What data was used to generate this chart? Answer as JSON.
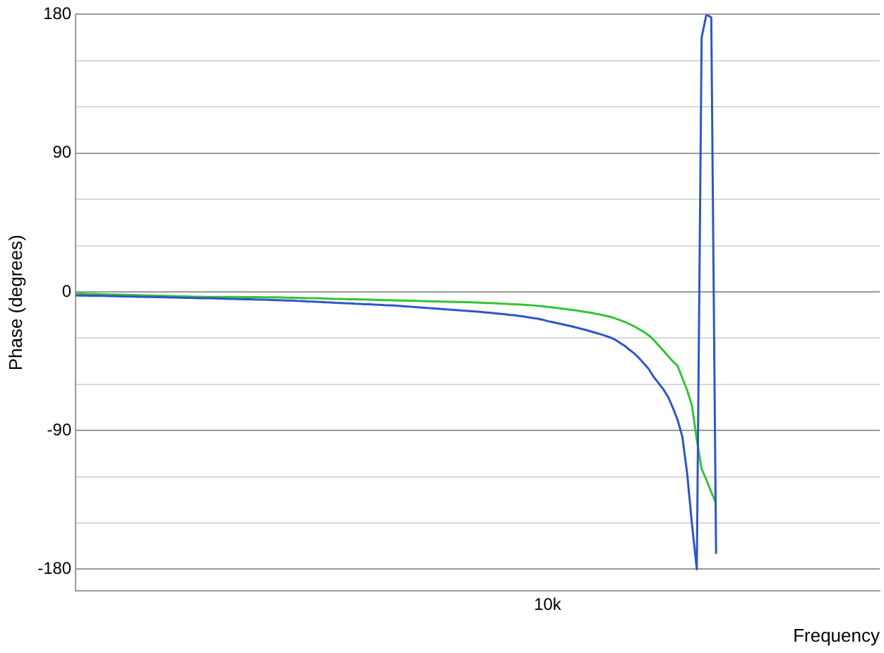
{
  "chart_data": {
    "type": "line",
    "ylabel": "Phase (degrees)",
    "xlabel": "Frequency",
    "grid": "y",
    "legend": false,
    "marker": "none",
    "line_style": "solid",
    "categories": [
      null,
      null,
      null,
      null,
      null,
      null,
      null,
      null,
      null,
      null,
      null,
      null,
      null,
      null,
      null,
      null,
      null,
      null,
      null,
      null,
      null,
      null,
      null,
      null,
      null,
      null,
      null,
      null,
      null,
      null,
      null,
      null,
      null,
      null,
      null,
      null,
      null,
      null,
      null,
      null,
      null,
      null,
      null,
      null,
      null,
      null,
      null,
      null,
      null,
      null,
      null,
      null,
      null,
      null,
      null,
      null,
      null,
      null,
      null,
      null,
      null,
      null,
      null,
      null,
      null,
      null,
      null,
      null,
      null,
      null,
      null,
      null,
      null,
      null,
      null,
      null,
      null,
      null,
      null,
      null,
      null,
      null,
      null,
      null,
      null,
      null,
      null,
      null,
      null,
      null,
      null,
      null,
      null,
      null,
      null,
      null,
      null,
      null,
      "10k",
      null,
      null,
      null,
      null,
      null,
      null,
      null,
      null,
      null,
      null,
      null,
      null,
      null,
      null,
      null,
      null,
      null,
      null,
      null,
      null,
      null,
      null,
      null,
      null,
      null,
      null,
      null,
      null,
      null,
      null,
      null,
      null,
      null,
      null,
      null,
      null,
      null,
      null,
      null,
      null,
      null,
      null,
      null,
      null,
      null,
      null,
      null,
      null,
      null,
      null,
      null,
      null,
      null,
      null,
      null,
      null,
      null,
      null,
      null,
      null,
      null,
      null,
      null,
      null,
      null,
      null,
      null,
      null,
      null
    ],
    "ylim": [
      -194,
      180
    ],
    "yticks": [
      {
        "value": -180,
        "label": "-180"
      },
      {
        "value": -150,
        "label": null
      },
      {
        "value": -120,
        "label": null
      },
      {
        "value": -90,
        "label": "-90"
      },
      {
        "value": -60,
        "label": null
      },
      {
        "value": -30,
        "label": null
      },
      {
        "value": 0,
        "label": "0"
      },
      {
        "value": 30,
        "label": null
      },
      {
        "value": 60,
        "label": null
      },
      {
        "value": 90,
        "label": "90"
      },
      {
        "value": 120,
        "label": null
      },
      {
        "value": 150,
        "label": null
      },
      {
        "value": 180,
        "label": "180"
      }
    ],
    "series": [
      {
        "color": "#2f55c8",
        "values": [
          -2.3,
          -2.4,
          -2.4,
          -2.5,
          -2.6,
          -2.6,
          -2.7,
          -2.8,
          -2.8,
          -2.9,
          -3.0,
          -3.0,
          -3.1,
          -3.2,
          -3.2,
          -3.3,
          -3.4,
          -3.5,
          -3.5,
          -3.6,
          -3.7,
          -3.7,
          -3.8,
          -3.9,
          -3.9,
          -4.0,
          -4.1,
          -4.2,
          -4.2,
          -4.3,
          -4.4,
          -4.5,
          -4.6,
          -4.6,
          -4.7,
          -4.8,
          -4.9,
          -5.0,
          -5.1,
          -5.1,
          -5.2,
          -5.3,
          -5.4,
          -5.5,
          -5.6,
          -5.7,
          -5.9,
          -6.0,
          -6.2,
          -6.3,
          -6.5,
          -6.6,
          -6.8,
          -6.9,
          -7.1,
          -7.2,
          -7.4,
          -7.5,
          -7.7,
          -7.8,
          -8.0,
          -8.1,
          -8.3,
          -8.4,
          -8.6,
          -8.7,
          -8.9,
          -9.1,
          -9.3,
          -9.5,
          -9.8,
          -10.0,
          -10.2,
          -10.5,
          -10.7,
          -10.9,
          -11.1,
          -11.4,
          -11.6,
          -11.8,
          -12.1,
          -12.3,
          -12.5,
          -12.8,
          -13.0,
          -13.3,
          -13.6,
          -13.9,
          -14.2,
          -14.5,
          -14.9,
          -15.2,
          -15.6,
          -16.0,
          -16.5,
          -17.0,
          -17.5,
          -18.1,
          -19.0,
          -19.6,
          -20.3,
          -21.0,
          -21.7,
          -22.4,
          -23.2,
          -24.0,
          -24.8,
          -25.7,
          -26.6,
          -27.5,
          -28.5,
          -29.6,
          -31,
          -33,
          -35,
          -37.5,
          -40,
          -43,
          -46.5,
          -50,
          -55,
          -59,
          -63,
          -68,
          -75,
          -83,
          -94,
          -118,
          -151,
          -180,
          165,
          180,
          178,
          -170,
          null,
          null,
          null,
          null,
          null,
          null,
          null,
          null,
          null,
          null,
          null,
          null,
          null,
          null,
          null,
          null,
          null,
          null,
          null,
          null,
          null,
          null,
          null,
          null,
          null,
          null,
          null,
          null,
          null,
          null,
          null,
          null,
          null,
          null
        ]
      },
      {
        "color": "#33c433",
        "values": [
          -1.1,
          -1.2,
          -1.3,
          -1.4,
          -1.4,
          -1.5,
          -1.6,
          -1.7,
          -1.8,
          -1.9,
          -1.9,
          -2.0,
          -2.1,
          -2.2,
          -2.3,
          -2.4,
          -2.4,
          -2.5,
          -2.6,
          -2.7,
          -2.8,
          -2.9,
          -2.9,
          -3.0,
          -3.1,
          -3.2,
          -3.2,
          -3.3,
          -3.3,
          -3.3,
          -3.3,
          -3.4,
          -3.4,
          -3.4,
          -3.4,
          -3.5,
          -3.5,
          -3.5,
          -3.5,
          -3.6,
          -3.6,
          -3.6,
          -3.6,
          -3.7,
          -3.8,
          -3.8,
          -3.9,
          -4.0,
          -4.1,
          -4.2,
          -4.2,
          -4.3,
          -4.4,
          -4.5,
          -4.6,
          -4.6,
          -4.7,
          -4.8,
          -4.9,
          -5.0,
          -5.0,
          -5.1,
          -5.2,
          -5.3,
          -5.4,
          -5.4,
          -5.5,
          -5.6,
          -5.7,
          -5.8,
          -5.8,
          -5.9,
          -6.0,
          -6.1,
          -6.2,
          -6.2,
          -6.3,
          -6.4,
          -6.5,
          -6.6,
          -6.6,
          -6.7,
          -6.8,
          -6.9,
          -7.0,
          -7.2,
          -7.3,
          -7.4,
          -7.6,
          -7.7,
          -7.9,
          -8.0,
          -8.2,
          -8.4,
          -8.6,
          -8.8,
          -9.1,
          -9.4,
          -9.8,
          -10.1,
          -10.5,
          -10.9,
          -11.3,
          -11.7,
          -12.1,
          -12.6,
          -13.1,
          -13.6,
          -14.2,
          -14.8,
          -15.5,
          -16.2,
          -17.2,
          -18.3,
          -19.5,
          -20.9,
          -22.4,
          -24.2,
          -26,
          -28.2,
          -31,
          -34.5,
          -38,
          -41.5,
          -45,
          -48,
          -56,
          -64,
          -74,
          -96,
          -115,
          -122,
          -130,
          -137,
          null,
          null,
          null,
          null,
          null,
          null,
          null,
          null,
          null,
          null,
          null,
          null,
          null,
          null,
          null,
          null,
          null,
          null,
          null,
          null,
          null,
          null,
          null,
          null,
          null,
          null,
          null,
          null,
          null,
          null,
          null,
          null,
          null,
          null
        ]
      }
    ]
  }
}
